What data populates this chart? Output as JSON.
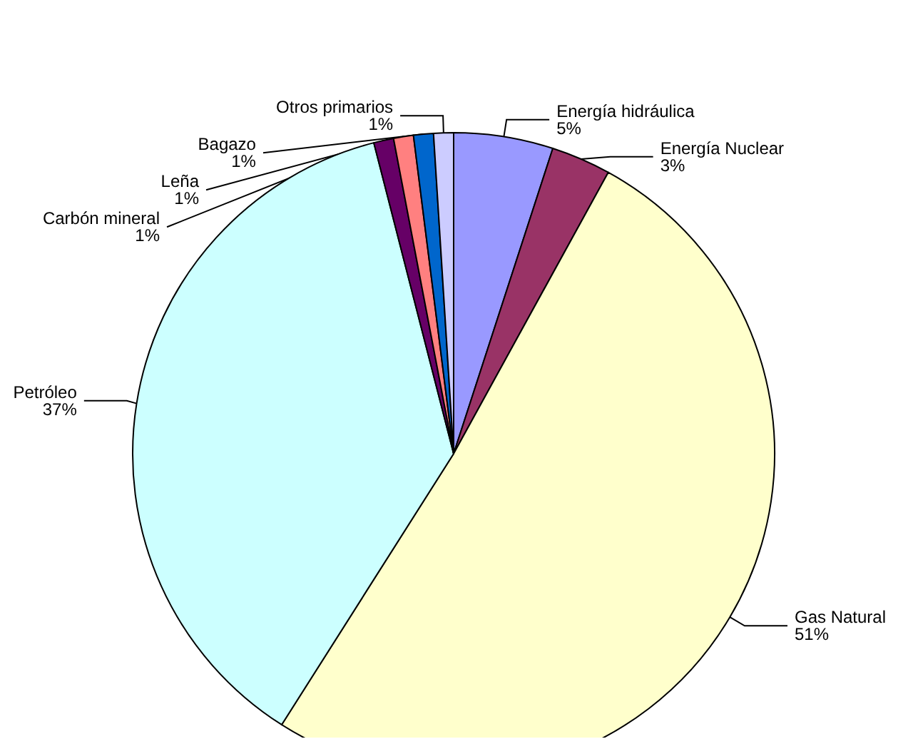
{
  "chart_data": {
    "type": "pie",
    "categories": [
      "Energía hidráulica",
      "Energía Nuclear",
      "Gas Natural",
      "Petróleo",
      "Carbón mineral",
      "Leña",
      "Bagazo",
      "Otros primarios"
    ],
    "values": [
      5,
      3,
      51,
      37,
      1,
      1,
      1,
      1
    ],
    "value_labels": [
      "5%",
      "3%",
      "51%",
      "37%",
      "1%",
      "1%",
      "1%",
      "1%"
    ],
    "colors": [
      "#9999ff",
      "#993366",
      "#ffffcc",
      "#ccffff",
      "#660066",
      "#ff8080",
      "#0066cc",
      "#ccccff"
    ],
    "legend": false
  }
}
